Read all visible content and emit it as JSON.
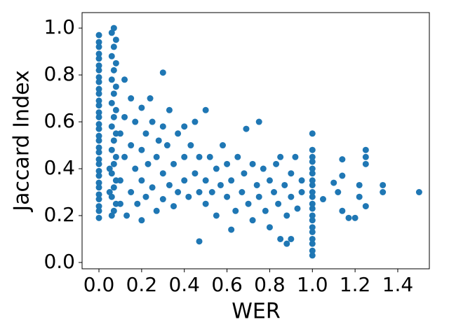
{
  "chart_data": {
    "type": "scatter",
    "color": "#1f77b4",
    "x_label": "WER",
    "y_label": "Jaccard Index",
    "xlim": [
      -0.079,
      1.548
    ],
    "ylim": [
      -0.027,
      1.066
    ],
    "xticks": [
      {
        "value": 0,
        "label": "0.0"
      },
      {
        "value": 0.2,
        "label": "0.2"
      },
      {
        "value": 0.4,
        "label": "0.4"
      },
      {
        "value": 0.6,
        "label": "0.6"
      },
      {
        "value": 0.8,
        "label": "0.8"
      },
      {
        "value": 1,
        "label": "1.0"
      },
      {
        "value": 1.2,
        "label": "1.2"
      },
      {
        "value": 1.4,
        "label": "1.4"
      }
    ],
    "yticks": [
      {
        "value": 0,
        "label": "0.0"
      },
      {
        "value": 0.2,
        "label": "0.2"
      },
      {
        "value": 0.4,
        "label": "0.4"
      },
      {
        "value": 0.6,
        "label": "0.6"
      },
      {
        "value": 0.8,
        "label": "0.8"
      },
      {
        "value": 1,
        "label": "1.0"
      }
    ],
    "x": [
      0,
      0,
      0,
      0,
      0,
      0,
      0,
      0,
      0,
      0,
      0,
      0,
      0,
      0,
      0,
      0,
      0,
      0,
      0,
      0,
      0,
      0,
      0,
      0,
      0,
      0,
      0,
      0,
      0,
      0,
      0,
      0,
      0.07,
      0.06,
      0.08,
      0.07,
      0.06,
      0.08,
      0.07,
      0.06,
      0.08,
      0.07,
      0.06,
      0.08,
      0.07,
      0.06,
      0.08,
      0.07,
      0.06,
      0.08,
      0.07,
      0.06,
      0.08,
      0.07,
      0.06,
      0.08,
      0.07,
      0.06,
      1,
      1,
      1,
      1,
      1,
      1,
      1,
      1,
      1,
      1,
      1,
      1,
      1,
      1,
      1,
      1,
      1,
      1,
      1,
      1,
      0.05,
      0.05,
      0.1,
      0.1,
      0.1,
      0.12,
      0.12,
      0.13,
      0.15,
      0.15,
      0.15,
      0.17,
      0.17,
      0.18,
      0.2,
      0.2,
      0.2,
      0.22,
      0.22,
      0.23,
      0.24,
      0.25,
      0.25,
      0.27,
      0.27,
      0.28,
      0.3,
      0.3,
      0.3,
      0.32,
      0.33,
      0.33,
      0.35,
      0.35,
      0.37,
      0.37,
      0.4,
      0.4,
      0.4,
      0.42,
      0.43,
      0.45,
      0.45,
      0.47,
      0.47,
      0.3,
      0.5,
      0.47,
      0.2,
      0.12,
      0.5,
      0.5,
      0.52,
      0.53,
      0.55,
      0.55,
      0.57,
      0.58,
      0.6,
      0.6,
      0.62,
      0.62,
      0.64,
      0.65,
      0.67,
      0.68,
      0.69,
      0.7,
      0.72,
      0.72,
      0.74,
      0.75,
      0.75,
      0.77,
      0.78,
      0.8,
      0.8,
      0.82,
      0.83,
      0.84,
      0.85,
      0.85,
      0.87,
      0.88,
      0.88,
      0.9,
      0.9,
      0.92,
      0.93,
      0.95,
      0.95,
      1.05,
      1.1,
      1.14,
      1.14,
      1.12,
      1.14,
      1.17,
      1.2,
      1.22,
      1.25,
      1.25,
      1.25,
      1.25,
      1.22,
      1.33,
      1.33,
      1.5,
      0.9
    ],
    "values": [
      0.19,
      0.22,
      0.24,
      0.27,
      0.29,
      0.32,
      0.34,
      0.37,
      0.39,
      0.42,
      0.44,
      0.47,
      0.49,
      0.52,
      0.54,
      0.57,
      0.59,
      0.62,
      0.64,
      0.67,
      0.69,
      0.72,
      0.74,
      0.77,
      0.79,
      0.82,
      0.84,
      0.87,
      0.89,
      0.92,
      0.94,
      0.97,
      1.0,
      0.98,
      0.95,
      0.92,
      0.88,
      0.85,
      0.82,
      0.78,
      0.75,
      0.72,
      0.68,
      0.65,
      0.62,
      0.58,
      0.55,
      0.52,
      0.48,
      0.45,
      0.42,
      0.38,
      0.35,
      0.32,
      0.28,
      0.25,
      0.22,
      0.2,
      0.03,
      0.05,
      0.08,
      0.1,
      0.13,
      0.15,
      0.18,
      0.2,
      0.23,
      0.25,
      0.28,
      0.3,
      0.33,
      0.35,
      0.38,
      0.4,
      0.43,
      0.45,
      0.48,
      0.55,
      0.4,
      0.3,
      0.55,
      0.35,
      0.25,
      0.45,
      0.62,
      0.2,
      0.5,
      0.3,
      0.7,
      0.4,
      0.6,
      0.25,
      0.48,
      0.35,
      0.66,
      0.55,
      0.28,
      0.42,
      0.7,
      0.32,
      0.6,
      0.45,
      0.22,
      0.52,
      0.38,
      0.58,
      0.27,
      0.5,
      0.33,
      0.65,
      0.42,
      0.24,
      0.55,
      0.3,
      0.45,
      0.35,
      0.58,
      0.28,
      0.5,
      0.38,
      0.6,
      0.3,
      0.45,
      0.81,
      0.65,
      0.09,
      0.18,
      0.78,
      0.35,
      0.25,
      0.45,
      0.3,
      0.4,
      0.2,
      0.33,
      0.5,
      0.28,
      0.42,
      0.14,
      0.35,
      0.22,
      0.45,
      0.3,
      0.38,
      0.57,
      0.25,
      0.42,
      0.18,
      0.33,
      0.6,
      0.28,
      0.4,
      0.22,
      0.35,
      0.15,
      0.3,
      0.42,
      0.25,
      0.45,
      0.1,
      0.33,
      0.2,
      0.08,
      0.38,
      0.28,
      0.45,
      0.23,
      0.3,
      0.35,
      0.27,
      0.34,
      0.44,
      0.37,
      0.3,
      0.22,
      0.19,
      0.19,
      0.33,
      0.48,
      0.45,
      0.42,
      0.24,
      0.28,
      0.33,
      0.3,
      0.3,
      0.1
    ]
  }
}
